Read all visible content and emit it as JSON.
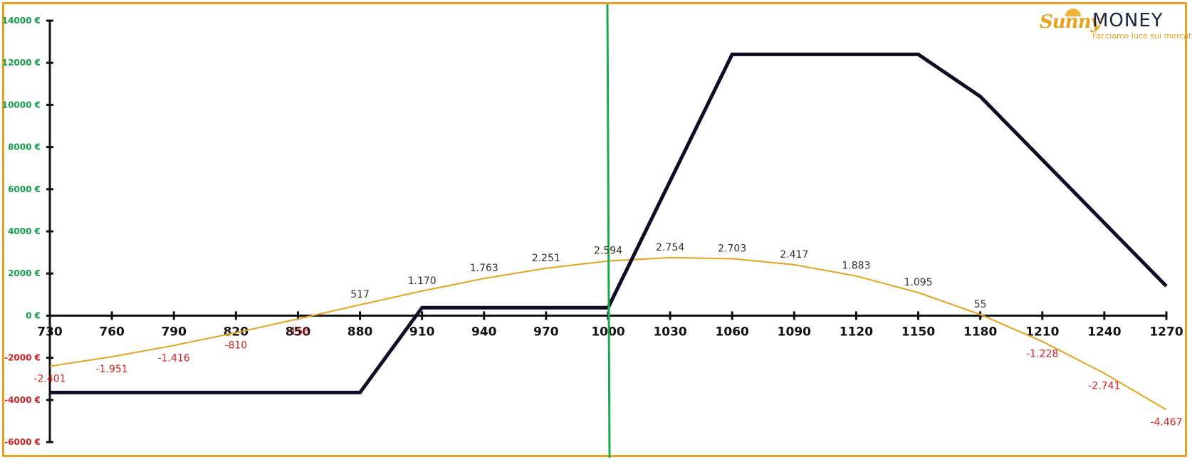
{
  "logo": {
    "brand_script": "Sunny",
    "brand_word": "MONEY",
    "tagline": "Facciamo luce sui mercati"
  },
  "colors": {
    "frame": "#e8a21e",
    "payoff_expiry": "#0d0d25",
    "payoff_today": "#e8a21e",
    "current_price": "#1aa84c",
    "positive": "#13a04a",
    "negative": "#d21f1f",
    "label_pos": "#333333",
    "label_neg": "#d21f1f"
  },
  "chart_data": {
    "type": "line",
    "xlim": [
      730,
      1270
    ],
    "ylim": [
      -6000,
      14000
    ],
    "x_ticks": [
      730,
      760,
      790,
      820,
      850,
      880,
      910,
      940,
      970,
      1000,
      1030,
      1060,
      1090,
      1120,
      1150,
      1180,
      1210,
      1240,
      1270
    ],
    "y_ticks": [
      {
        "value": 14000,
        "label": "14000 €"
      },
      {
        "value": 12000,
        "label": "12000 €"
      },
      {
        "value": 10000,
        "label": "10000 €"
      },
      {
        "value": 8000,
        "label": "8000 €"
      },
      {
        "value": 6000,
        "label": "6000 €"
      },
      {
        "value": 4000,
        "label": "4000 €"
      },
      {
        "value": 2000,
        "label": "2000 €"
      },
      {
        "value": 0,
        "label": "0 €"
      },
      {
        "value": -2000,
        "label": "-2000 €"
      },
      {
        "value": -4000,
        "label": "-4000 €"
      },
      {
        "value": -6000,
        "label": "-6000 €"
      }
    ],
    "vertical_marker_x": 1000,
    "series": [
      {
        "type": "line",
        "x": [
          730,
          880,
          910,
          1000,
          1060,
          1150,
          1180,
          1270
        ],
        "y": [
          -3650,
          -3650,
          380,
          380,
          12400,
          12400,
          10400,
          1400
        ]
      },
      {
        "type": "line",
        "x": [
          730,
          760,
          790,
          820,
          850,
          880,
          910,
          940,
          970,
          1000,
          1030,
          1060,
          1090,
          1120,
          1150,
          1180,
          1210,
          1240,
          1270
        ],
        "y": [
          -2401,
          -1951,
          -1416,
          -810,
          -156,
          517,
          1170,
          1763,
          2251,
          2594,
          2754,
          2703,
          2417,
          1883,
          1095,
          55,
          -1228,
          -2741,
          -4467
        ],
        "labels": [
          "-2.401",
          "-1.951",
          "-1.416",
          "-810",
          "-156",
          "517",
          "1.170",
          "1.763",
          "2.251",
          "2.594",
          "2.754",
          "2.703",
          "2.417",
          "1.883",
          "1.095",
          "55",
          "-1.228",
          "-2.741",
          "-4.467"
        ]
      }
    ]
  }
}
